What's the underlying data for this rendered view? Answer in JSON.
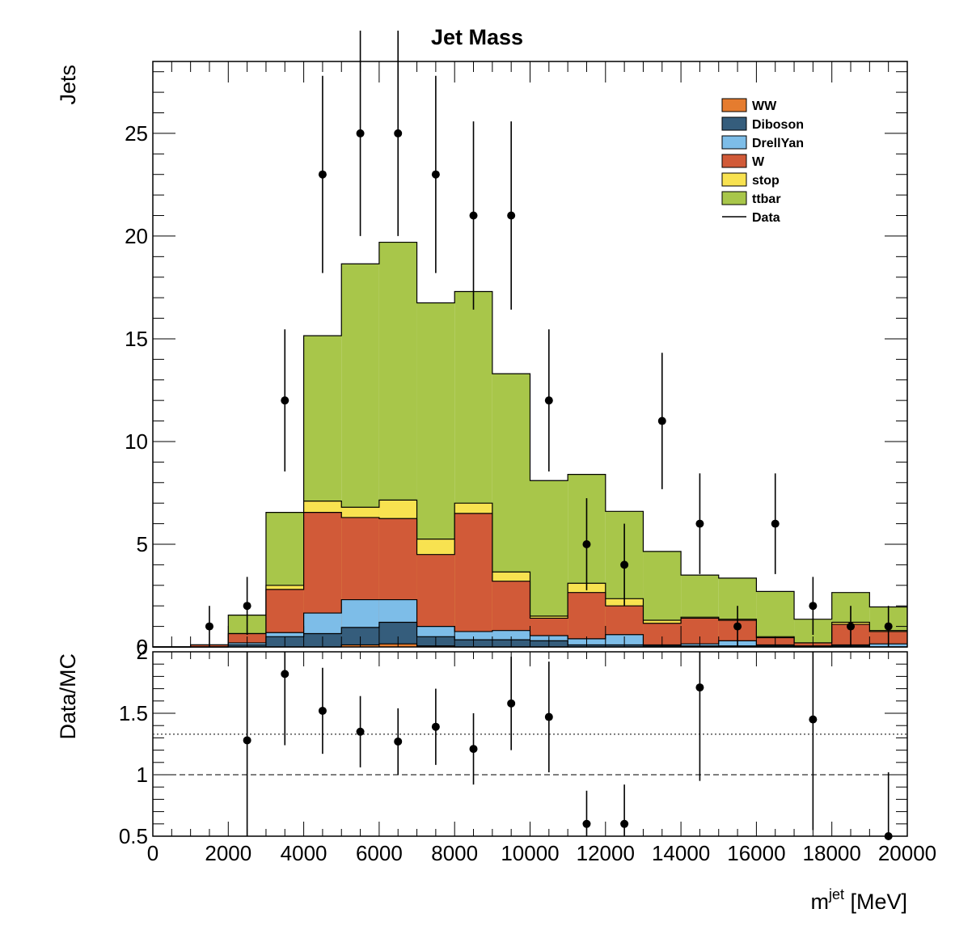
{
  "colors": {
    "WW": "#e57c2f",
    "Diboson": "#355d7c",
    "DrellYan": "#7dbde8",
    "W": "#d15a38",
    "stop": "#f8e250",
    "ttbar": "#a8c64a",
    "data": "#000000"
  },
  "chart_data": [
    {
      "type": "bar",
      "subtype": "stacked-histogram-with-data-points",
      "title": "Jet Mass",
      "ylabel": "Jets",
      "xlim": [
        0,
        20000
      ],
      "ylim": [
        0,
        28.5
      ],
      "y_ticks": [
        {
          "v": 0,
          "label": "0"
        },
        {
          "v": 5,
          "label": "5"
        },
        {
          "v": 10,
          "label": "10"
        },
        {
          "v": 15,
          "label": "15"
        },
        {
          "v": 20,
          "label": "20"
        },
        {
          "v": 25,
          "label": "25"
        }
      ],
      "legend_position": "top-right",
      "bin_edges": [
        0,
        1000,
        2000,
        3000,
        4000,
        5000,
        6000,
        7000,
        8000,
        9000,
        10000,
        11000,
        12000,
        13000,
        14000,
        15000,
        16000,
        17000,
        18000,
        19000,
        20000
      ],
      "series": [
        {
          "name": "WW",
          "values": [
            0,
            0,
            0,
            0,
            0,
            0.1,
            0.15,
            0.05,
            0,
            0,
            0,
            0,
            0,
            0,
            0,
            0,
            0,
            0,
            0,
            0
          ]
        },
        {
          "name": "Diboson",
          "values": [
            0,
            0,
            0.1,
            0.5,
            0.65,
            0.85,
            1.05,
            0.45,
            0.35,
            0.35,
            0.3,
            0.1,
            0.1,
            0.05,
            0.05,
            0.05,
            0.05,
            0,
            0.05,
            0
          ]
        },
        {
          "name": "DrellYan",
          "values": [
            0,
            0,
            0.1,
            0.2,
            1.0,
            1.35,
            1.1,
            0.5,
            0.4,
            0.45,
            0.25,
            0.3,
            0.5,
            0.05,
            0.1,
            0.25,
            0.05,
            0.05,
            0.05,
            0.15
          ]
        },
        {
          "name": "W",
          "values": [
            0,
            0.1,
            0.45,
            2.1,
            4.9,
            4.0,
            3.95,
            3.5,
            5.75,
            2.4,
            0.85,
            2.25,
            1.4,
            1.05,
            1.25,
            1.0,
            0.35,
            0.15,
            1.0,
            0.6
          ]
        },
        {
          "name": "stop",
          "values": [
            0,
            0,
            0,
            0.2,
            0.55,
            0.5,
            0.9,
            0.75,
            0.5,
            0.45,
            0.1,
            0.45,
            0.35,
            0.15,
            0.05,
            0.05,
            0.05,
            0,
            0.1,
            0.05
          ]
        },
        {
          "name": "ttbar",
          "values": [
            0,
            0,
            0.9,
            3.55,
            8.05,
            11.85,
            12.55,
            11.5,
            10.3,
            9.65,
            6.6,
            5.3,
            4.25,
            3.35,
            2.05,
            2.0,
            2.2,
            1.15,
            1.45,
            1.15
          ]
        },
        {
          "name": "Data",
          "type": "points",
          "x": [
            1500,
            2500,
            3500,
            4500,
            5500,
            6500,
            7500,
            8500,
            9500,
            10500,
            11500,
            12500,
            13500,
            14500,
            15500,
            16500,
            17500,
            18500,
            19500
          ],
          "y": [
            1,
            2,
            12,
            23,
            25,
            25,
            23,
            21,
            21,
            12,
            5,
            4,
            11,
            6,
            1,
            6,
            2,
            1,
            1
          ],
          "yerr": [
            1,
            1.41,
            3.46,
            4.8,
            5,
            5,
            4.8,
            4.58,
            4.58,
            3.46,
            2.24,
            2,
            3.32,
            2.45,
            1,
            2.45,
            1.41,
            1,
            1
          ]
        }
      ]
    },
    {
      "type": "scatter",
      "subtype": "ratio-with-error-bars",
      "ylabel": "Data/MC",
      "xlabel_base": "m",
      "xlabel_sup": "jet",
      "xlabel_unit": " [MeV]",
      "xlim": [
        0,
        20000
      ],
      "ylim": [
        0.5,
        2
      ],
      "x_ticks": [
        {
          "v": 0,
          "label": "0"
        },
        {
          "v": 2000,
          "label": "2000"
        },
        {
          "v": 4000,
          "label": "4000"
        },
        {
          "v": 6000,
          "label": "6000"
        },
        {
          "v": 8000,
          "label": "8000"
        },
        {
          "v": 10000,
          "label": "10000"
        },
        {
          "v": 12000,
          "label": "12000"
        },
        {
          "v": 14000,
          "label": "14000"
        },
        {
          "v": 16000,
          "label": "16000"
        },
        {
          "v": 18000,
          "label": "18000"
        },
        {
          "v": 20000,
          "label": "20000"
        }
      ],
      "y_ticks": [
        {
          "v": 0.5,
          "label": "0.5"
        },
        {
          "v": 1,
          "label": "1"
        },
        {
          "v": 1.5,
          "label": "1.5"
        },
        {
          "v": 2,
          "label": "2"
        }
      ],
      "reference_lines": [
        {
          "y": 1.0,
          "style": "dashed"
        },
        {
          "y": 1.33,
          "style": "dotted"
        }
      ],
      "points": [
        {
          "x": 2500,
          "y": 1.28,
          "err_lo": 0.8,
          "err_hi": 0.9
        },
        {
          "x": 3500,
          "y": 1.82,
          "err_lo": 0.58,
          "err_hi": 0.6
        },
        {
          "x": 4500,
          "y": 1.52,
          "err_lo": 0.35,
          "err_hi": 0.35
        },
        {
          "x": 5500,
          "y": 1.35,
          "err_lo": 0.29,
          "err_hi": 0.29
        },
        {
          "x": 6500,
          "y": 1.27,
          "err_lo": 0.27,
          "err_hi": 0.27
        },
        {
          "x": 7500,
          "y": 1.39,
          "err_lo": 0.31,
          "err_hi": 0.31
        },
        {
          "x": 8500,
          "y": 1.21,
          "err_lo": 0.29,
          "err_hi": 0.29
        },
        {
          "x": 9500,
          "y": 1.58,
          "err_lo": 0.38,
          "err_hi": 0.38
        },
        {
          "x": 10500,
          "y": 1.47,
          "err_lo": 0.45,
          "err_hi": 0.45
        },
        {
          "x": 11500,
          "y": 0.6,
          "err_lo": 0.3,
          "err_hi": 0.27
        },
        {
          "x": 12500,
          "y": 0.6,
          "err_lo": 0.3,
          "err_hi": 0.32
        },
        {
          "x": 14500,
          "y": 1.71,
          "err_lo": 0.76,
          "err_hi": 0.8
        },
        {
          "x": 17500,
          "y": 1.45,
          "err_lo": 0.9,
          "err_hi": 0.9
        },
        {
          "x": 19500,
          "y": 0.5,
          "err_lo": 0.5,
          "err_hi": 0.52
        }
      ]
    }
  ]
}
